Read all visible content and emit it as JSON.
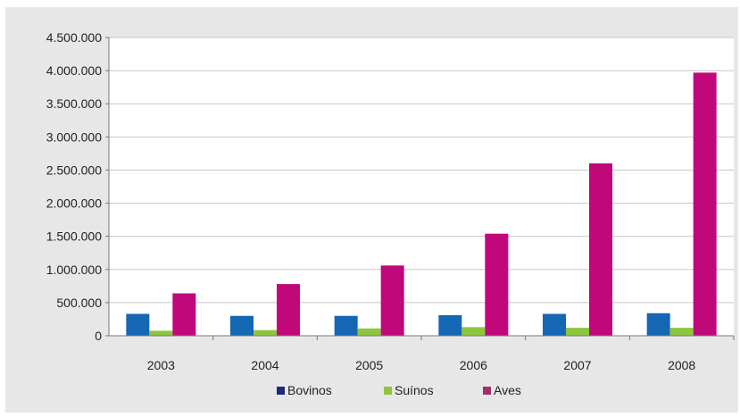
{
  "chart_data": {
    "type": "bar",
    "title": "",
    "xlabel": "",
    "ylabel": "",
    "categories": [
      "2003",
      "2004",
      "2005",
      "2006",
      "2007",
      "2008"
    ],
    "series": [
      {
        "name": "Bovinos",
        "color": "#1467b3",
        "legend_color": "#1f2a7a",
        "values": [
          330000,
          300000,
          300000,
          310000,
          330000,
          340000
        ]
      },
      {
        "name": "Suínos",
        "color": "#8cc63f",
        "legend_color": "#8cc63f",
        "values": [
          75000,
          85000,
          110000,
          130000,
          120000,
          120000
        ]
      },
      {
        "name": "Aves",
        "color": "#c1087a",
        "legend_color": "#a0306a",
        "values": [
          640000,
          780000,
          1060000,
          1540000,
          2600000,
          3970000
        ]
      }
    ],
    "ylim": [
      0,
      4500000
    ],
    "yticks": [
      {
        "value": 0,
        "label": "0"
      },
      {
        "value": 500000,
        "label": "500.000"
      },
      {
        "value": 1000000,
        "label": "1.000.000"
      },
      {
        "value": 1500000,
        "label": "1.500.000"
      },
      {
        "value": 2000000,
        "label": "2.000.000"
      },
      {
        "value": 2500000,
        "label": "2.500.000"
      },
      {
        "value": 3000000,
        "label": "3.000.000"
      },
      {
        "value": 3500000,
        "label": "3.500.000"
      },
      {
        "value": 4000000,
        "label": "4.000.000"
      },
      {
        "value": 4500000,
        "label": "4.500.000"
      }
    ],
    "grid": true,
    "legend_position": "bottom"
  }
}
